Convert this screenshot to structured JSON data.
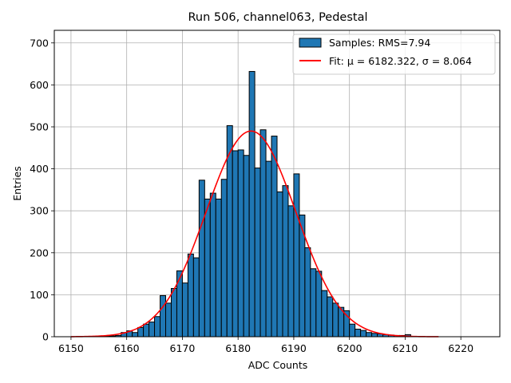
{
  "chart_data": {
    "type": "bar",
    "title": "Run 506, channel063, Pedestal",
    "xlabel": "ADC Counts",
    "ylabel": "Entries",
    "xlim": [
      6147,
      6227
    ],
    "ylim": [
      0,
      730
    ],
    "xticks": [
      6150,
      6160,
      6170,
      6180,
      6190,
      6200,
      6210,
      6220
    ],
    "yticks": [
      0,
      100,
      200,
      300,
      400,
      500,
      600,
      700
    ],
    "grid": true,
    "legend_position": "top-right",
    "bin_width": 1,
    "series": [
      {
        "name": "Samples: RMS=7.94",
        "kind": "histogram",
        "color": "#1f77b4",
        "edge_color": "#000000",
        "bin_start": [
          6156,
          6157,
          6158,
          6159,
          6160,
          6161,
          6162,
          6163,
          6164,
          6165,
          6166,
          6167,
          6168,
          6169,
          6170,
          6171,
          6172,
          6173,
          6174,
          6175,
          6176,
          6177,
          6178,
          6179,
          6180,
          6181,
          6182,
          6183,
          6184,
          6185,
          6186,
          6187,
          6188,
          6189,
          6190,
          6191,
          6192,
          6193,
          6194,
          6195,
          6196,
          6197,
          6198,
          6199,
          6200,
          6201,
          6202,
          6203,
          6204,
          6205,
          6206,
          6207,
          6208,
          6209,
          6210
        ],
        "counts": [
          2,
          2,
          3,
          10,
          14,
          10,
          22,
          30,
          35,
          48,
          98,
          80,
          115,
          157,
          128,
          197,
          188,
          373,
          328,
          342,
          328,
          375,
          503,
          443,
          445,
          432,
          632,
          402,
          493,
          418,
          478,
          345,
          360,
          312,
          388,
          290,
          212,
          162,
          156,
          110,
          95,
          80,
          70,
          62,
          30,
          18,
          15,
          10,
          8,
          7,
          5,
          4,
          3,
          3,
          5
        ]
      },
      {
        "name": "Fit: μ = 6182.322, σ = 8.064",
        "kind": "gaussian_fit",
        "color": "#ff0000",
        "mu": 6182.322,
        "sigma": 8.064,
        "amplitude": 490,
        "x_range": [
          6150,
          6216
        ]
      }
    ]
  }
}
